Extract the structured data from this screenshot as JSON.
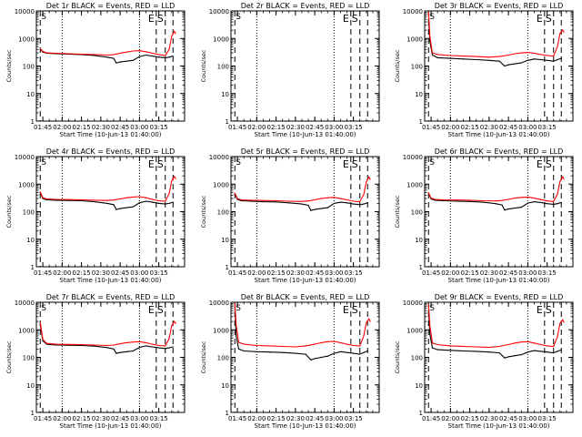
{
  "shared": {
    "title_suffix": " BLACK = Events, RED = LLD",
    "xlabel": "Start Time (10-Jun-13 01:40:00)",
    "ylabel": "Counts/sec",
    "x_ticks": [
      "01:45",
      "02:00",
      "02:15",
      "02:30",
      "02:45",
      "03:00",
      "03:15"
    ],
    "y_ticks": [
      "1",
      "10",
      "100",
      "1000",
      "10000"
    ],
    "markers": [
      "E",
      "S"
    ],
    "colors": {
      "events": "#000000",
      "lld": "#ff0000",
      "axis": "#000000"
    }
  },
  "chart_data": [
    {
      "type": "line",
      "title": "Det 1r",
      "xlim": [
        100,
        215
      ],
      "ylim": [
        1,
        10000
      ],
      "yscale": "log",
      "x_units": "minutes since 00:00",
      "series": [
        {
          "name": "Events",
          "x": [
            103,
            105,
            108,
            115,
            125,
            135,
            145,
            155,
            160,
            162,
            165,
            170,
            175,
            180,
            185,
            190,
            195,
            200,
            203,
            206
          ],
          "values": [
            400,
            320,
            290,
            280,
            270,
            260,
            240,
            210,
            190,
            130,
            140,
            150,
            160,
            220,
            250,
            230,
            210,
            200,
            210,
            230
          ]
        },
        {
          "name": "LLD",
          "x": [
            103,
            105,
            108,
            115,
            125,
            135,
            145,
            155,
            160,
            165,
            170,
            175,
            180,
            185,
            190,
            195,
            200,
            203,
            205,
            207,
            208
          ],
          "values": [
            420,
            340,
            300,
            290,
            280,
            270,
            260,
            250,
            260,
            290,
            320,
            350,
            360,
            330,
            290,
            260,
            240,
            400,
            1200,
            1800,
            1500
          ]
        }
      ],
      "vlines_dotted": [
        120,
        180
      ],
      "vlines_dashed": [
        103,
        193,
        200,
        206
      ]
    },
    {
      "type": "line",
      "title": "Det 2r",
      "xlim": [
        100,
        215
      ],
      "ylim": [
        1,
        10000
      ],
      "yscale": "log",
      "x_units": "minutes since 00:00",
      "series": [],
      "vlines_dotted": [
        120,
        180
      ],
      "vlines_dashed": [
        103,
        193,
        200,
        206
      ]
    },
    {
      "type": "line",
      "title": "Det 3r",
      "xlim": [
        100,
        215
      ],
      "ylim": [
        1,
        10000
      ],
      "yscale": "log",
      "x_units": "minutes since 00:00",
      "series": [
        {
          "name": "Events",
          "x": [
            103,
            104,
            106,
            110,
            120,
            130,
            140,
            150,
            158,
            162,
            165,
            170,
            175,
            180,
            185,
            190,
            195,
            200,
            203,
            206
          ],
          "values": [
            5000,
            800,
            250,
            200,
            190,
            180,
            170,
            160,
            150,
            100,
            110,
            120,
            130,
            160,
            180,
            170,
            160,
            150,
            170,
            190
          ]
        },
        {
          "name": "LLD",
          "x": [
            103,
            104,
            106,
            110,
            120,
            130,
            140,
            150,
            158,
            165,
            170,
            175,
            180,
            185,
            190,
            195,
            200,
            203,
            205,
            207,
            208
          ],
          "values": [
            9000,
            1200,
            300,
            260,
            240,
            230,
            220,
            210,
            220,
            250,
            280,
            300,
            310,
            290,
            260,
            240,
            230,
            500,
            1500,
            2000,
            1700
          ]
        }
      ],
      "vlines_dotted": [
        120,
        180
      ],
      "vlines_dashed": [
        103,
        193,
        200,
        206
      ]
    },
    {
      "type": "line",
      "title": "Det 4r",
      "xlim": [
        100,
        215
      ],
      "ylim": [
        1,
        10000
      ],
      "yscale": "log",
      "x_units": "minutes since 00:00",
      "series": [
        {
          "name": "Events",
          "x": [
            103,
            105,
            108,
            115,
            125,
            135,
            145,
            155,
            160,
            162,
            165,
            170,
            175,
            180,
            185,
            190,
            195,
            200,
            203,
            206
          ],
          "values": [
            500,
            300,
            270,
            260,
            255,
            250,
            230,
            200,
            180,
            120,
            130,
            140,
            150,
            210,
            240,
            220,
            200,
            190,
            200,
            220
          ]
        },
        {
          "name": "LLD",
          "x": [
            103,
            105,
            108,
            115,
            125,
            135,
            145,
            155,
            160,
            165,
            170,
            175,
            180,
            185,
            190,
            195,
            200,
            203,
            205,
            207,
            208
          ],
          "values": [
            520,
            320,
            290,
            280,
            275,
            270,
            260,
            255,
            265,
            290,
            320,
            340,
            350,
            320,
            280,
            250,
            240,
            450,
            1300,
            1900,
            1600
          ]
        }
      ],
      "vlines_dotted": [
        120,
        180
      ],
      "vlines_dashed": [
        103,
        193,
        200,
        206
      ]
    },
    {
      "type": "line",
      "title": "Det 5r",
      "xlim": [
        100,
        215
      ],
      "ylim": [
        1,
        10000
      ],
      "yscale": "log",
      "x_units": "minutes since 00:00",
      "series": [
        {
          "name": "Events",
          "x": [
            103,
            105,
            108,
            115,
            125,
            135,
            145,
            155,
            160,
            162,
            165,
            170,
            175,
            180,
            185,
            190,
            195,
            200,
            203,
            206
          ],
          "values": [
            450,
            280,
            250,
            240,
            230,
            225,
            210,
            190,
            170,
            110,
            120,
            130,
            140,
            200,
            220,
            210,
            190,
            180,
            190,
            210
          ]
        },
        {
          "name": "LLD",
          "x": [
            103,
            105,
            108,
            115,
            125,
            135,
            145,
            155,
            160,
            165,
            170,
            175,
            180,
            185,
            190,
            195,
            200,
            203,
            205,
            207,
            208
          ],
          "values": [
            470,
            300,
            270,
            260,
            255,
            250,
            240,
            235,
            245,
            270,
            300,
            320,
            330,
            300,
            270,
            240,
            230,
            420,
            1200,
            1800,
            1500
          ]
        }
      ],
      "vlines_dotted": [
        120,
        180
      ],
      "vlines_dashed": [
        103,
        193,
        200,
        206
      ]
    },
    {
      "type": "line",
      "title": "Det 6r",
      "xlim": [
        100,
        215
      ],
      "ylim": [
        1,
        10000
      ],
      "yscale": "log",
      "x_units": "minutes since 00:00",
      "series": [
        {
          "name": "Events",
          "x": [
            103,
            105,
            108,
            115,
            125,
            135,
            145,
            155,
            160,
            162,
            165,
            170,
            175,
            180,
            185,
            190,
            195,
            200,
            203,
            206
          ],
          "values": [
            460,
            290,
            260,
            250,
            240,
            235,
            220,
            195,
            175,
            115,
            125,
            135,
            145,
            205,
            230,
            215,
            195,
            185,
            195,
            215
          ]
        },
        {
          "name": "LLD",
          "x": [
            103,
            105,
            108,
            115,
            125,
            135,
            145,
            155,
            160,
            165,
            170,
            175,
            180,
            185,
            190,
            195,
            200,
            203,
            205,
            207,
            208
          ],
          "values": [
            480,
            310,
            280,
            270,
            265,
            260,
            250,
            245,
            255,
            280,
            310,
            330,
            340,
            310,
            275,
            245,
            235,
            430,
            1250,
            1850,
            1550
          ]
        }
      ],
      "vlines_dotted": [
        120,
        180
      ],
      "vlines_dashed": [
        103,
        193,
        200,
        206
      ]
    },
    {
      "type": "line",
      "title": "Det 7r",
      "xlim": [
        100,
        215
      ],
      "ylim": [
        1,
        10000
      ],
      "yscale": "log",
      "x_units": "minutes since 00:00",
      "series": [
        {
          "name": "Events",
          "x": [
            103,
            105,
            108,
            115,
            125,
            135,
            145,
            155,
            160,
            162,
            165,
            170,
            175,
            180,
            185,
            190,
            195,
            200,
            203,
            206
          ],
          "values": [
            1500,
            400,
            300,
            280,
            275,
            270,
            255,
            225,
            200,
            140,
            150,
            160,
            170,
            230,
            260,
            240,
            220,
            210,
            220,
            240
          ]
        },
        {
          "name": "LLD",
          "x": [
            103,
            105,
            108,
            115,
            125,
            135,
            145,
            155,
            160,
            165,
            170,
            175,
            180,
            185,
            190,
            195,
            200,
            203,
            205,
            207,
            208
          ],
          "values": [
            1800,
            450,
            320,
            300,
            295,
            290,
            280,
            270,
            280,
            310,
            340,
            360,
            370,
            340,
            300,
            270,
            260,
            480,
            1400,
            2000,
            1700
          ]
        }
      ],
      "vlines_dotted": [
        120,
        180
      ],
      "vlines_dashed": [
        103,
        193,
        200,
        206
      ]
    },
    {
      "type": "line",
      "title": "Det 8r",
      "xlim": [
        100,
        215
      ],
      "ylim": [
        1,
        10000
      ],
      "yscale": "log",
      "x_units": "minutes since 00:00",
      "series": [
        {
          "name": "Events",
          "x": [
            103,
            104,
            106,
            110,
            120,
            130,
            140,
            150,
            158,
            162,
            165,
            170,
            175,
            180,
            185,
            190,
            195,
            200,
            203,
            206
          ],
          "values": [
            6000,
            600,
            200,
            170,
            160,
            155,
            150,
            140,
            130,
            80,
            90,
            100,
            110,
            140,
            160,
            150,
            140,
            130,
            150,
            170
          ]
        },
        {
          "name": "LLD",
          "x": [
            103,
            104,
            106,
            110,
            120,
            130,
            140,
            150,
            158,
            165,
            170,
            175,
            180,
            185,
            190,
            195,
            200,
            203,
            205,
            207,
            208
          ],
          "values": [
            9000,
            1500,
            350,
            300,
            270,
            260,
            250,
            240,
            260,
            300,
            340,
            370,
            380,
            340,
            300,
            270,
            260,
            600,
            1800,
            2500,
            2000
          ]
        }
      ],
      "vlines_dotted": [
        120,
        180
      ],
      "vlines_dashed": [
        103,
        193,
        200,
        206
      ]
    },
    {
      "type": "line",
      "title": "Det 9r",
      "xlim": [
        100,
        215
      ],
      "ylim": [
        1,
        10000
      ],
      "yscale": "log",
      "x_units": "minutes since 00:00",
      "series": [
        {
          "name": "Events",
          "x": [
            103,
            104,
            106,
            110,
            120,
            130,
            140,
            150,
            158,
            162,
            165,
            170,
            175,
            180,
            185,
            190,
            195,
            200,
            203,
            206
          ],
          "values": [
            5000,
            700,
            220,
            190,
            180,
            170,
            165,
            155,
            145,
            95,
            105,
            115,
            125,
            155,
            175,
            165,
            155,
            145,
            165,
            185
          ]
        },
        {
          "name": "LLD",
          "x": [
            103,
            104,
            106,
            110,
            120,
            130,
            140,
            150,
            158,
            165,
            170,
            175,
            180,
            185,
            190,
            195,
            200,
            203,
            205,
            207,
            208
          ],
          "values": [
            8000,
            1400,
            330,
            290,
            260,
            250,
            240,
            230,
            250,
            290,
            330,
            360,
            370,
            330,
            290,
            260,
            250,
            560,
            1700,
            2300,
            1900
          ]
        }
      ],
      "vlines_dotted": [
        120,
        180
      ],
      "vlines_dashed": [
        103,
        193,
        200,
        206
      ]
    }
  ]
}
